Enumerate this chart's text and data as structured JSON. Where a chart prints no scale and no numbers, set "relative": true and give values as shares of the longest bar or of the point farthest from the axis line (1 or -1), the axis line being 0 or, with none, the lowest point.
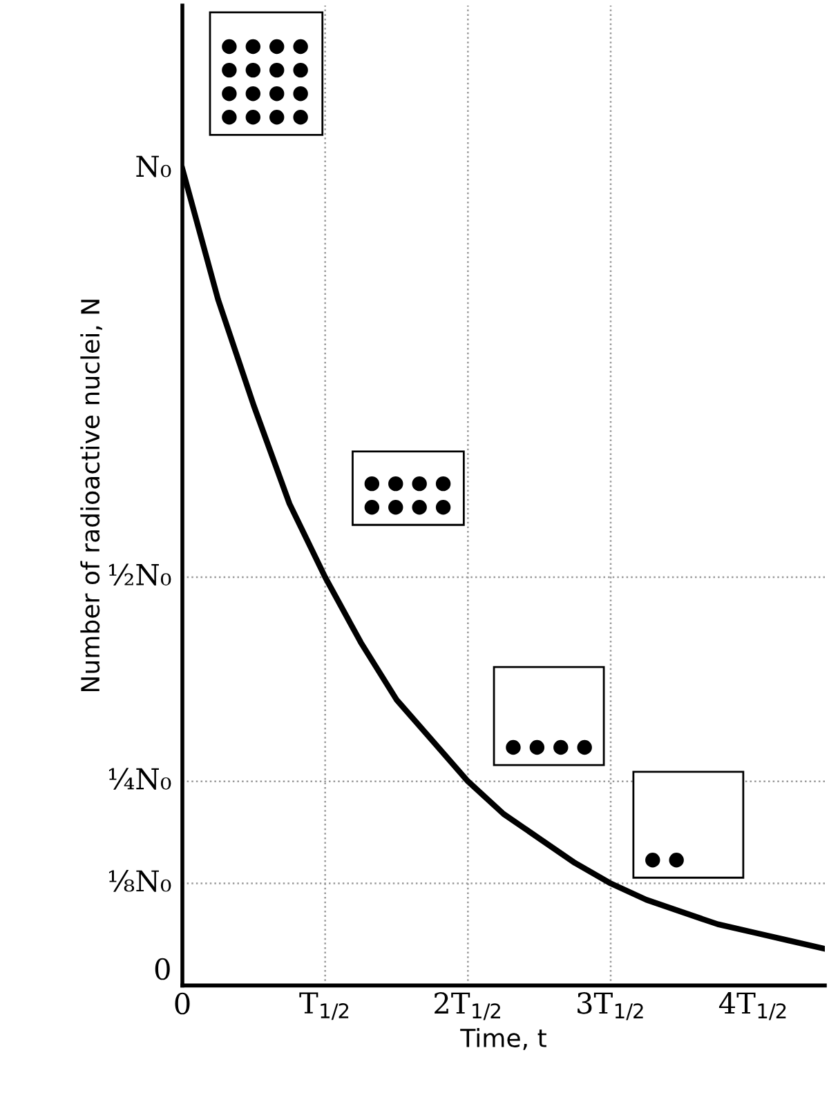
{
  "chart_data": {
    "type": "line",
    "xlabel": "Time, t",
    "ylabel": "Number of radioactive nuclei, N",
    "relative": true,
    "categories": [
      "0",
      null,
      null,
      null,
      "T$_{1/2}$",
      null,
      null,
      null,
      "2T$_{1/2}$",
      null,
      null,
      null,
      "3T$_{1/2}$",
      null,
      null,
      null,
      "4T$_{1/2}$",
      null,
      null
    ],
    "series": [
      {
        "color": "#000000",
        "values": [
          1,
          0.84,
          0.71,
          0.59,
          0.5,
          0.42,
          0.35,
          0.3,
          0.25,
          0.21,
          0.18,
          0.15,
          0.125,
          0.105,
          0.09,
          0.075,
          0.065,
          0.055,
          0.045
        ]
      }
    ],
    "annotations": [
      {
        "text": "N₀",
        "x": "0",
        "y": 1
      },
      "0"
    ],
    "ref_lines": [
      {
        "axis": "y",
        "value": 0.5,
        "label": "½N₀",
        "color": "#999999",
        "line_style": "dotted"
      },
      {
        "axis": "y",
        "value": 0.25,
        "label": "¼N₀",
        "color": "#999999",
        "line_style": "dotted"
      },
      {
        "axis": "y",
        "value": 0.125,
        "label": "⅛N₀",
        "color": "#999999",
        "line_style": "dotted"
      },
      {
        "axis": "x",
        "value": "T$_{1/2}$",
        "color": "#999999",
        "line_style": "dotted"
      },
      {
        "axis": "x",
        "value": "2T$_{1/2}$",
        "color": "#999999",
        "line_style": "dotted"
      },
      {
        "axis": "x",
        "value": "3T$_{1/2}$",
        "color": "#999999",
        "line_style": "dotted"
      }
    ],
    "grid": false,
    "legend": false,
    "marker": "none",
    "line_style": "solid"
  }
}
